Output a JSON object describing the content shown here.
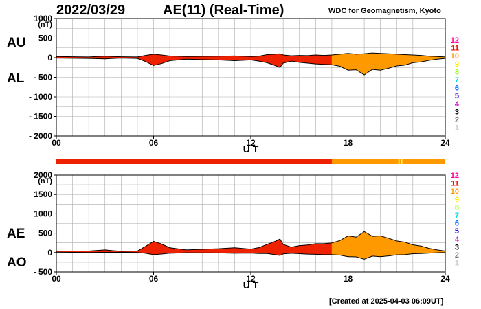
{
  "header": {
    "date": "2022/03/29",
    "title": "AE(11) (Real-Time)",
    "source": "WDC for Geomagnetism, Kyoto"
  },
  "footer": {
    "created": "[Created at 2025-04-03 06:09UT]"
  },
  "colors": {
    "red": "#ee2200",
    "orange": "#ff9900",
    "grid": "#aaaaaa",
    "bar_marker": "#ffee44"
  },
  "station_scale": [
    {
      "label": "12",
      "color": "#ff0099"
    },
    {
      "label": "11",
      "color": "#ee1100"
    },
    {
      "label": "10",
      "color": "#ff9900"
    },
    {
      "label": "9",
      "color": "#ffee00"
    },
    {
      "label": "8",
      "color": "#99ff00"
    },
    {
      "label": "7",
      "color": "#00dddd"
    },
    {
      "label": "6",
      "color": "#0066ff"
    },
    {
      "label": "5",
      "color": "#2200cc"
    },
    {
      "label": "4",
      "color": "#cc00cc"
    },
    {
      "label": "3",
      "color": "#000000"
    },
    {
      "label": "2",
      "color": "#777777"
    },
    {
      "label": "1",
      "color": "#cccccc"
    }
  ],
  "station_bar": {
    "segments": [
      {
        "from": 0,
        "to": 17,
        "count": 11
      },
      {
        "from": 17,
        "to": 24,
        "count": 10
      }
    ],
    "markers": [
      21.1
    ]
  },
  "chart_data": [
    {
      "type": "area",
      "panel": "AU/AL",
      "series_labels": [
        "AU",
        "AL"
      ],
      "ylabel": "(nT)",
      "xlabel": "U T",
      "xlim": [
        0,
        24
      ],
      "ylim": [
        -2000,
        1000
      ],
      "yticks": [
        "1000",
        "500",
        "0",
        "- 500",
        "- 1000",
        "- 1500",
        "- 2000"
      ],
      "ytick_values": [
        1000,
        500,
        0,
        -500,
        -1000,
        -1500,
        -2000
      ],
      "xticks": [
        "00",
        "06",
        "12",
        "18",
        "24"
      ],
      "xtick_values": [
        0,
        6,
        12,
        18,
        24
      ],
      "x": [
        0,
        1,
        2,
        3,
        3.5,
        4,
        5,
        5.5,
        6,
        6.5,
        7,
        8,
        9,
        10,
        11,
        12,
        12.5,
        13,
        13.5,
        13.8,
        14,
        14.5,
        15,
        15.5,
        16,
        16.5,
        17,
        17.5,
        18,
        18.5,
        19,
        19.5,
        20,
        20.5,
        21,
        21.5,
        22,
        22.5,
        23,
        23.5,
        24
      ],
      "upper": [
        30,
        25,
        20,
        40,
        30,
        25,
        20,
        60,
        90,
        70,
        45,
        30,
        35,
        40,
        45,
        30,
        40,
        80,
        90,
        100,
        70,
        50,
        60,
        55,
        70,
        60,
        70,
        90,
        110,
        90,
        100,
        120,
        110,
        100,
        90,
        80,
        70,
        60,
        40,
        30,
        20
      ],
      "lower": [
        -10,
        -15,
        -20,
        -30,
        -20,
        -10,
        -20,
        -100,
        -200,
        -150,
        -80,
        -40,
        -50,
        -60,
        -80,
        -60,
        -90,
        -130,
        -200,
        -250,
        -140,
        -90,
        -120,
        -140,
        -160,
        -170,
        -180,
        -220,
        -320,
        -310,
        -440,
        -300,
        -320,
        -270,
        -210,
        -190,
        -130,
        -110,
        -70,
        -40,
        -20
      ]
    },
    {
      "type": "area",
      "panel": "AE/AO",
      "series_labels": [
        "AE",
        "AO"
      ],
      "ylabel": "(nT)",
      "xlabel": "U T",
      "xlim": [
        0,
        24
      ],
      "ylim": [
        -500,
        2000
      ],
      "yticks": [
        "2000",
        "1500",
        "1000",
        "500",
        "0",
        "- 500"
      ],
      "ytick_values": [
        2000,
        1500,
        1000,
        500,
        0,
        -500
      ],
      "xticks": [
        "00",
        "06",
        "12",
        "18",
        "24"
      ],
      "xtick_values": [
        0,
        6,
        12,
        18,
        24
      ],
      "x": [
        0,
        1,
        2,
        3,
        3.5,
        4,
        5,
        5.5,
        6,
        6.5,
        7,
        8,
        9,
        10,
        11,
        12,
        12.5,
        13,
        13.5,
        13.8,
        14,
        14.5,
        15,
        15.5,
        16,
        16.5,
        17,
        17.5,
        18,
        18.5,
        19,
        19.5,
        20,
        20.5,
        21,
        21.5,
        22,
        22.5,
        23,
        23.5,
        24
      ],
      "upper": [
        40,
        40,
        40,
        70,
        50,
        35,
        40,
        160,
        290,
        220,
        125,
        70,
        85,
        100,
        125,
        90,
        130,
        210,
        290,
        350,
        210,
        140,
        180,
        195,
        230,
        230,
        250,
        310,
        430,
        400,
        540,
        420,
        430,
        370,
        300,
        270,
        200,
        170,
        110,
        70,
        40
      ],
      "lower": [
        10,
        5,
        0,
        5,
        5,
        8,
        0,
        -20,
        -55,
        -40,
        -18,
        -5,
        -8,
        -10,
        -18,
        -15,
        -25,
        -25,
        -55,
        -75,
        -35,
        -20,
        -30,
        -42,
        -45,
        -55,
        -55,
        -65,
        -105,
        -110,
        -170,
        -90,
        -105,
        -85,
        -60,
        -55,
        -30,
        -25,
        -15,
        -5,
        0
      ]
    }
  ],
  "labels": {
    "au": "AU",
    "al": "AL",
    "ae": "AE",
    "ao": "AO"
  }
}
